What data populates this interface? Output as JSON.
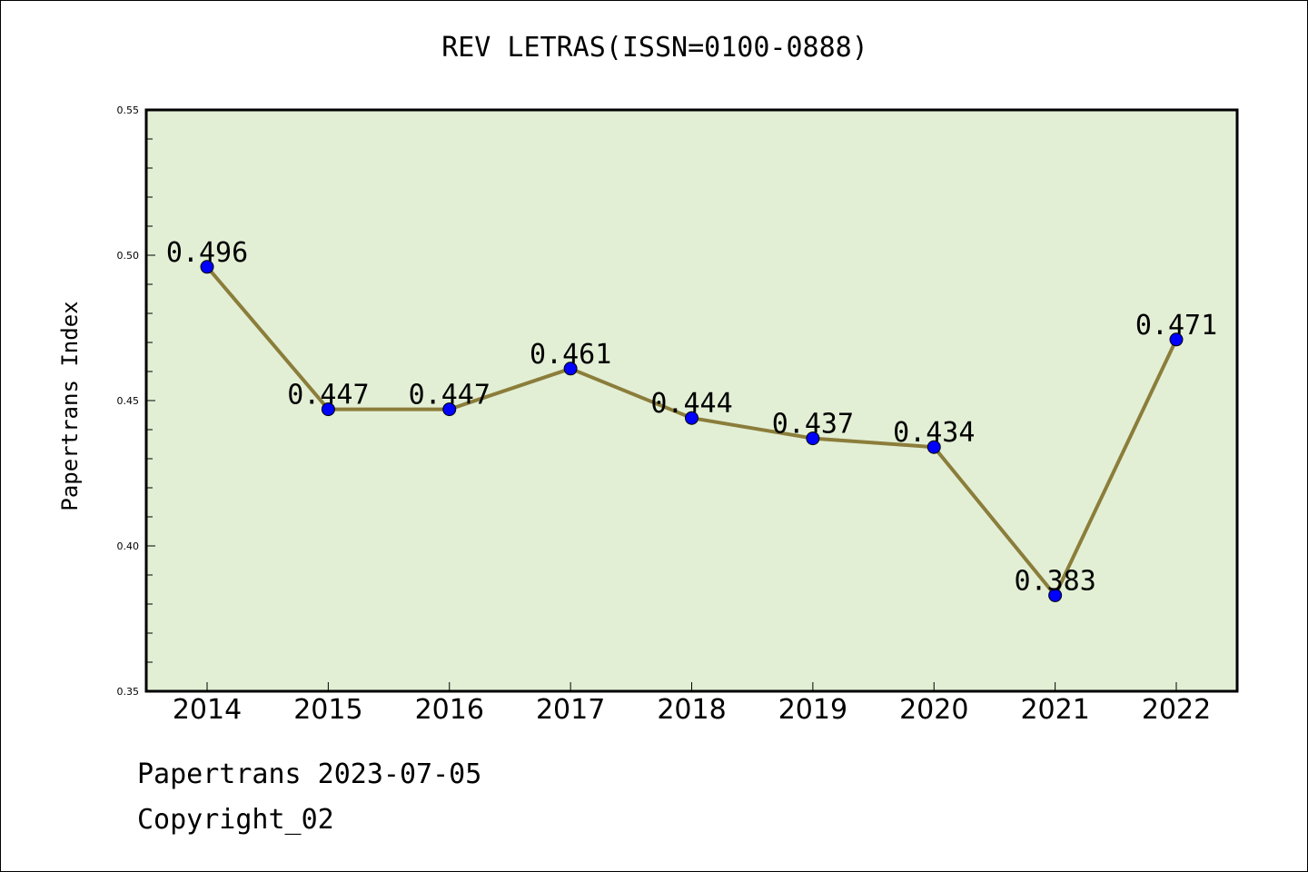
{
  "chart_data": {
    "type": "line",
    "title": "REV LETRAS(ISSN=0100-0888)",
    "xlabel": "",
    "ylabel": "Papertrans Index",
    "categories": [
      "2014",
      "2015",
      "2016",
      "2017",
      "2018",
      "2019",
      "2020",
      "2021",
      "2022"
    ],
    "series": [
      {
        "values": [
          0.496,
          0.447,
          0.447,
          0.461,
          0.444,
          0.437,
          0.434,
          0.383,
          0.471
        ],
        "labels": [
          "0.496",
          "0.447",
          "0.447",
          "0.461",
          "0.444",
          "0.437",
          "0.434",
          "0.383",
          "0.471"
        ]
      }
    ],
    "ylim": [
      0.35,
      0.55
    ],
    "yticks": [
      "0.35",
      "0.40",
      "0.45",
      "0.50",
      "0.55"
    ],
    "grid": false,
    "colors": {
      "plot_background": "#e2efd5",
      "line": "#8b7d3a",
      "marker": "#0000ff"
    }
  },
  "footer": {
    "date_text": "Papertrans 2023-07-05",
    "copyright_text": "Copyright_02"
  }
}
